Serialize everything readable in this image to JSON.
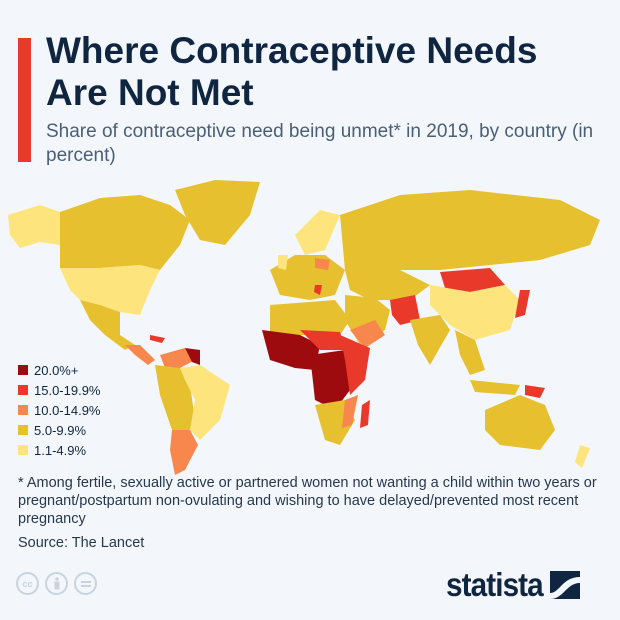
{
  "header": {
    "title": "Where Contraceptive Needs Are Not Met",
    "subtitle": "Share of contraceptive need being unmet* in 2019, by country (in percent)"
  },
  "legend": {
    "items": [
      {
        "label": "20.0%+",
        "color": "#9e0b0f"
      },
      {
        "label": "15.0-19.9%",
        "color": "#e8392b"
      },
      {
        "label": "10.0-14.9%",
        "color": "#f7874c"
      },
      {
        "label": "5.0-9.9%",
        "color": "#e6c02e"
      },
      {
        "label": "1.1-4.9%",
        "color": "#fde47c"
      }
    ]
  },
  "footnote": "* Among fertile, sexually active or partnered women not wanting a child within two years or pregnant/postpartum non-ovulating and wishing to have delayed/prevented most recent pregnancy",
  "source": "Source: The Lancet",
  "footer": {
    "license_icons": [
      "cc-icon",
      "by-person-icon",
      "nd-equals-icon"
    ],
    "brand": "statista"
  },
  "colors": {
    "accent": "#e8392b",
    "background": "#f3f7fb",
    "text": "#0f2540"
  }
}
